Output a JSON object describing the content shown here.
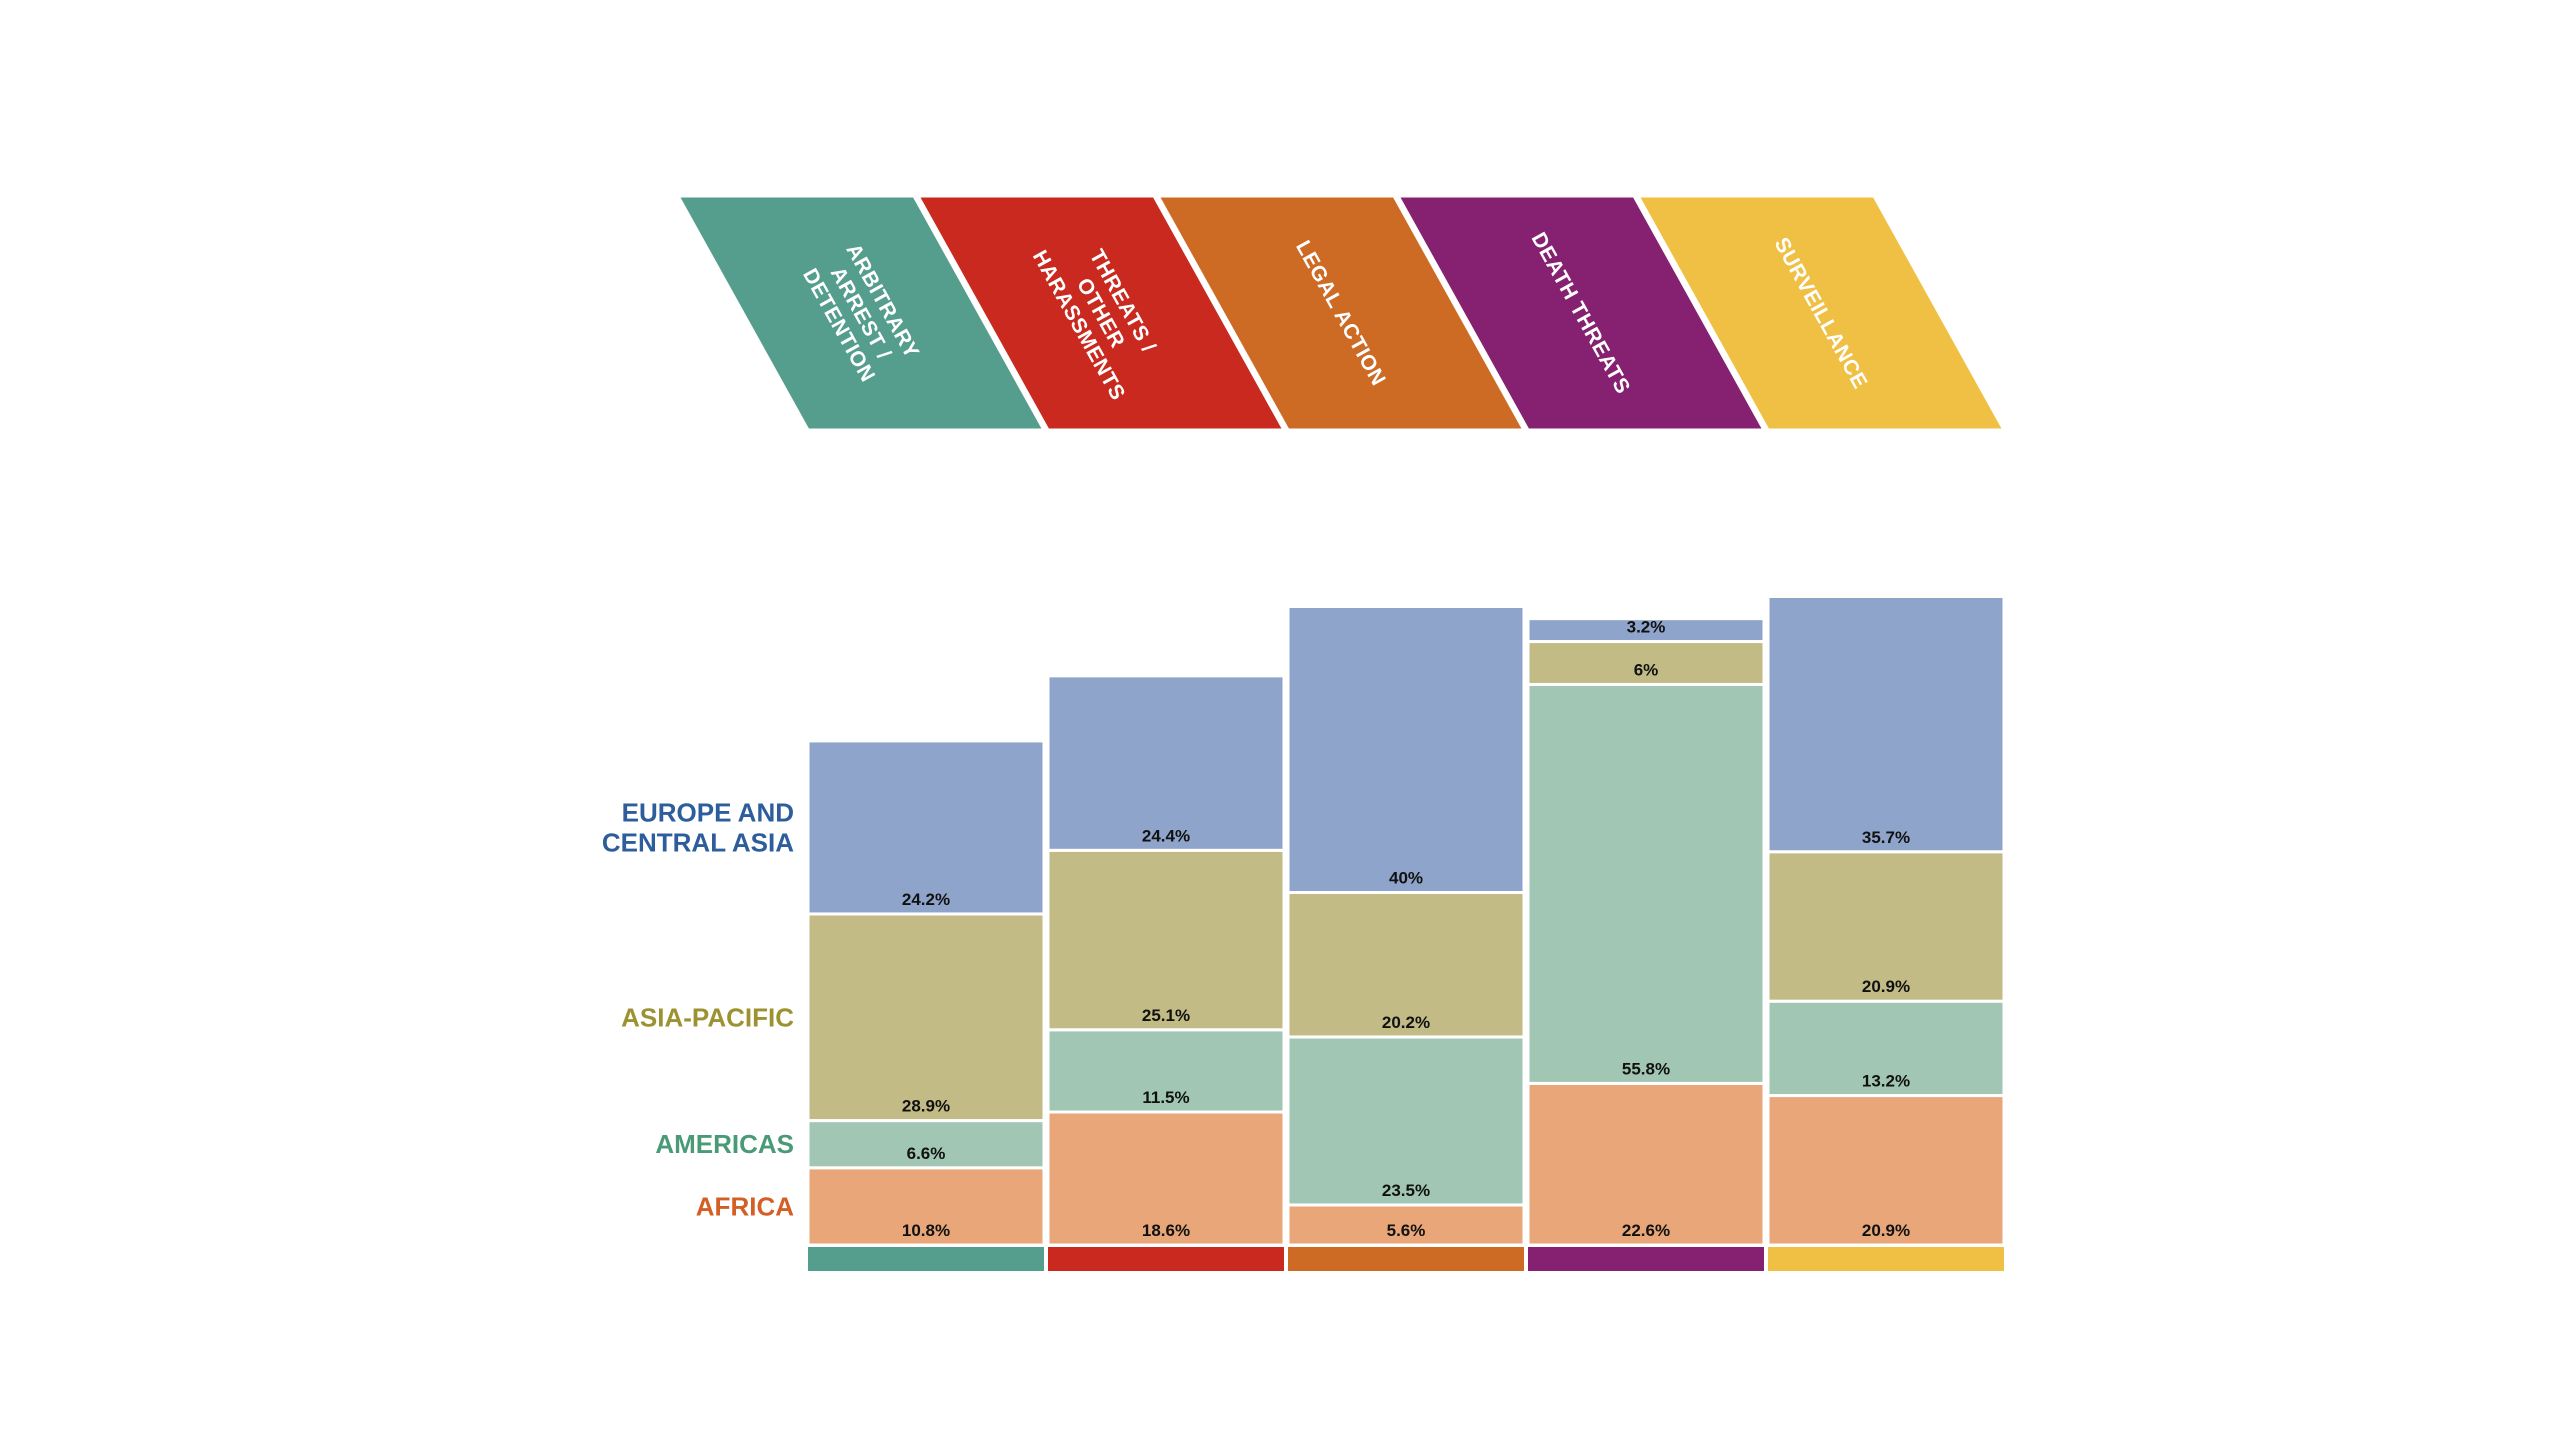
{
  "chart_data": {
    "type": "bar",
    "stacked": true,
    "title": "",
    "xlabel": "",
    "ylabel": "",
    "categories": [
      {
        "lines": [
          "ARBITRARY",
          "ARREST /",
          "DETENTION"
        ],
        "color": "#559e8e"
      },
      {
        "lines": [
          "THREATS /",
          "OTHER",
          "HARASSMENTS"
        ],
        "color": "#c9291e"
      },
      {
        "lines": [
          "LEGAL ACTION"
        ],
        "color": "#cd6b25"
      },
      {
        "lines": [
          "DEATH THREATS"
        ],
        "color": "#852170"
      },
      {
        "lines": [
          "SURVEILLANCE"
        ],
        "color": "#f0c045"
      }
    ],
    "series": [
      {
        "name_lines": [
          "AFRICA"
        ],
        "color": "#e8a679",
        "label_color": "#d35f24",
        "values": [
          10.8,
          18.6,
          5.6,
          22.6,
          20.9
        ],
        "labels": [
          "10.8%",
          "18.6%",
          "5.6%",
          "22.6%",
          "20.9%"
        ]
      },
      {
        "name_lines": [
          "AMERICAS"
        ],
        "color": "#a1c7b4",
        "label_color": "#4a9a77",
        "values": [
          6.6,
          11.5,
          23.5,
          55.8,
          13.2
        ],
        "labels": [
          "6.6%",
          "11.5%",
          "23.5%",
          "55.8%",
          "13.2%"
        ]
      },
      {
        "name_lines": [
          "ASIA-PACIFIC"
        ],
        "color": "#c2bb85",
        "label_color": "#9c9232",
        "values": [
          28.9,
          25.1,
          20.2,
          6,
          20.9
        ],
        "labels": [
          "28.9%",
          "25.1%",
          "20.2%",
          "6%",
          "20.9%"
        ]
      },
      {
        "name_lines": [
          "EUROPE AND",
          "CENTRAL ASIA"
        ],
        "color": "#8fa4ca",
        "label_color": "#2d5e9b",
        "values": [
          24.2,
          24.4,
          40,
          3.2,
          35.7
        ],
        "labels": [
          "24.2%",
          "24.4%",
          "40%",
          "3.2%",
          "35.7%"
        ]
      }
    ]
  }
}
